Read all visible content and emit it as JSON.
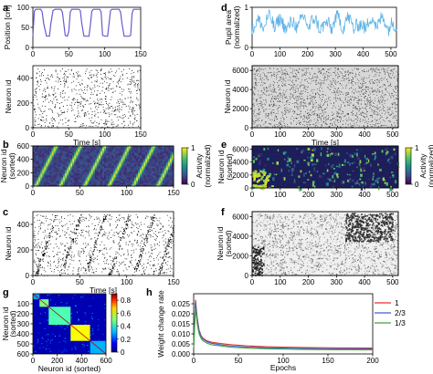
{
  "panel_letters": [
    "a",
    "b",
    "c",
    "d",
    "e",
    "f",
    "g",
    "h"
  ],
  "chart_data": [
    {
      "id": "a-top",
      "type": "line",
      "ylabel": "Position [cm]",
      "ylim": [
        0,
        100
      ],
      "xlim": [
        0,
        150
      ],
      "yticks": [
        0,
        50,
        100
      ],
      "xticks": [
        0,
        50,
        100,
        150
      ],
      "color": "#6a5acd",
      "description_values": {
        "low": 28,
        "high": 95,
        "period_s": 26.5
      },
      "x": [
        0,
        2,
        4,
        6,
        9,
        11,
        13,
        15,
        19,
        21,
        23,
        25,
        28,
        31,
        35,
        37,
        39,
        41,
        45,
        48,
        50,
        52,
        54,
        57,
        62,
        64,
        66,
        68,
        71,
        75,
        78,
        80,
        82,
        84,
        88,
        91,
        93,
        95,
        97,
        101,
        104,
        106,
        108,
        110,
        114,
        118,
        120,
        122,
        124,
        127,
        131,
        134,
        136,
        138,
        140,
        144,
        147,
        149
      ],
      "y": [
        28,
        90,
        95,
        95,
        95,
        95,
        88,
        60,
        28,
        28,
        28,
        60,
        92,
        95,
        95,
        95,
        95,
        88,
        30,
        28,
        40,
        88,
        95,
        95,
        95,
        95,
        92,
        60,
        28,
        28,
        28,
        55,
        90,
        95,
        95,
        95,
        95,
        88,
        30,
        28,
        28,
        60,
        92,
        95,
        95,
        95,
        95,
        88,
        60,
        28,
        28,
        28,
        30,
        85,
        95,
        95,
        95,
        95
      ]
    },
    {
      "id": "a-raster",
      "type": "scatter",
      "ylabel": "Neuron id",
      "xlabel": "Time [s]",
      "ylim": [
        0,
        500
      ],
      "xlim": [
        0,
        150
      ],
      "yticks": [
        0,
        200,
        400
      ],
      "xticks": [
        0,
        50,
        100,
        150
      ],
      "description": "random spike raster"
    },
    {
      "id": "b",
      "type": "heatmap",
      "ylabel": "Neuron id (sorted)",
      "ylim": [
        0,
        600
      ],
      "xlim": [
        0,
        150
      ],
      "yticks": [
        0,
        200,
        400,
        600
      ],
      "xticks": [
        0,
        50,
        100,
        150
      ],
      "colorbar": {
        "label": "Activity (normalized)",
        "ticks": [
          0,
          1
        ]
      },
      "colormap": "viridis",
      "sequence_starts_s": [
        3,
        29,
        55,
        81,
        107,
        133
      ]
    },
    {
      "id": "c",
      "type": "scatter",
      "ylabel": "Neuron id",
      "xlabel": "Time [s]",
      "ylim": [
        0,
        500
      ],
      "xlim": [
        0,
        150
      ],
      "yticks": [
        0,
        200,
        400
      ],
      "xticks": [
        0,
        50,
        100,
        150
      ],
      "sequence_starts_s": [
        3,
        29,
        55,
        81,
        107,
        133
      ]
    },
    {
      "id": "d-top",
      "type": "line",
      "ylabel": "Pupil area (normalized)",
      "ylim": [
        0,
        1
      ],
      "xlim": [
        0,
        520
      ],
      "yticks": [
        0,
        1
      ],
      "xticks": [
        0,
        100,
        200,
        300,
        400,
        500
      ],
      "color": "#5fb3e6"
    },
    {
      "id": "d-raster",
      "type": "scatter",
      "ylabel": "Neuron id",
      "xlabel": "Time [s]",
      "ylim": [
        0,
        6500
      ],
      "xlim": [
        0,
        520
      ],
      "yticks": [
        0,
        2000,
        4000,
        6000
      ],
      "xticks": [
        0,
        100,
        200,
        300,
        400,
        500
      ]
    },
    {
      "id": "e",
      "type": "heatmap",
      "ylabel": "Neuron id (sorted)",
      "ylim": [
        0,
        6500
      ],
      "xlim": [
        0,
        520
      ],
      "yticks": [
        0,
        2000,
        4000,
        6000
      ],
      "xticks": [
        0,
        100,
        200,
        300,
        400,
        500
      ],
      "colorbar": {
        "label": "Activity (normalized)",
        "ticks": [
          0,
          1
        ]
      },
      "colormap": "viridis"
    },
    {
      "id": "f",
      "type": "heatmap",
      "ylabel": "Neuron id (sorted)",
      "ylim": [
        0,
        6500
      ],
      "xlim": [
        0,
        520
      ],
      "yticks": [
        0,
        2000,
        4000,
        6000
      ],
      "xticks": [
        0,
        100,
        200,
        300,
        400,
        500
      ],
      "colormap": "gray_r"
    },
    {
      "id": "g",
      "type": "heatmap",
      "ylabel": "Neuron id (sorted)",
      "xlabel": "Neuron id (sorted)",
      "xlim": [
        0,
        600
      ],
      "ylim": [
        0,
        600
      ],
      "xticks": [
        0,
        200,
        400,
        600
      ],
      "yticks": [
        100,
        200,
        300,
        400,
        500,
        600
      ],
      "colorbar": {
        "ticks": [
          0,
          0.2,
          0.4,
          0.6,
          0.8
        ]
      },
      "colormap": "jet",
      "blocks": [
        {
          "from": 0,
          "to": 55,
          "value": 0.28
        },
        {
          "from": 55,
          "to": 130,
          "value": 0.5
        },
        {
          "from": 130,
          "to": 310,
          "value": 0.45
        },
        {
          "from": 310,
          "to": 470,
          "value": 0.62
        },
        {
          "from": 470,
          "to": 600,
          "value": 0.3
        }
      ],
      "background_value": 0.05
    },
    {
      "id": "h",
      "type": "line",
      "ylabel": "Weight change rate",
      "xlabel": "Epochs",
      "xlim": [
        0,
        200
      ],
      "ylim": [
        0,
        0.03
      ],
      "yticks": [
        0,
        0.005,
        0.01,
        0.015,
        0.02,
        0.025
      ],
      "ytick_labels": [
        "0.000",
        "0.005",
        "0.010",
        "0.015",
        "0.020",
        "0.025"
      ],
      "xticks": [
        0,
        50,
        100,
        150,
        200
      ],
      "x": [
        0,
        2,
        4,
        6,
        8,
        10,
        15,
        20,
        30,
        40,
        60,
        80,
        100,
        130,
        160,
        200
      ],
      "series": [
        {
          "name": "1",
          "color": "#e8302c",
          "values": [
            0.003,
            0.027,
            0.018,
            0.012,
            0.0095,
            0.008,
            0.0065,
            0.0058,
            0.0052,
            0.0047,
            0.004,
            0.0036,
            0.0034,
            0.0032,
            0.003,
            0.0029
          ]
        },
        {
          "name": "2/3",
          "color": "#3b5fd1",
          "values": [
            0.003,
            0.026,
            0.017,
            0.0115,
            0.009,
            0.0075,
            0.006,
            0.0053,
            0.0046,
            0.004,
            0.0034,
            0.0031,
            0.0029,
            0.0027,
            0.0026,
            0.0025
          ]
        },
        {
          "name": "1/3",
          "color": "#3ea53a",
          "values": [
            0.003,
            0.023,
            0.015,
            0.01,
            0.008,
            0.0067,
            0.0053,
            0.0046,
            0.004,
            0.0034,
            0.0029,
            0.0026,
            0.0024,
            0.0022,
            0.0021,
            0.002
          ]
        }
      ]
    }
  ]
}
